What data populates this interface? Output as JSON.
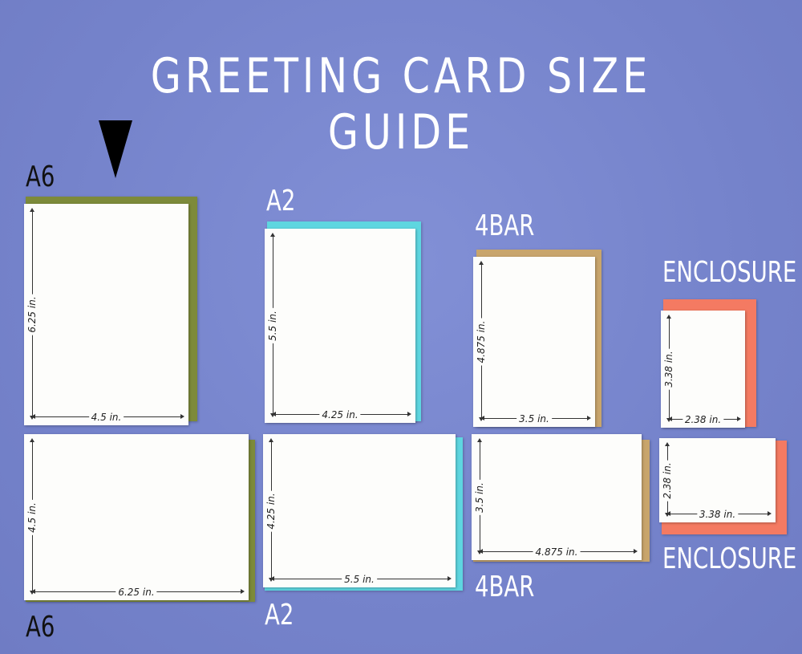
{
  "title": "GREETING CARD SIZE GUIDE",
  "colors": {
    "background": "#7a87cd",
    "a6_envelope": "#7d8a3a",
    "a2_envelope": "#5ed6e0",
    "4bar_envelope": "#c8a56c",
    "enclosure_envelope": "#f47a62",
    "card": "#fdfdfb"
  },
  "arrow_icon": "down-pointing-triangle",
  "labels": {
    "a6_top": "A6",
    "a2_top": "A2",
    "4bar_top": "4BAR",
    "enclosure_top": "ENCLOSURE",
    "a6_bottom": "A6",
    "a2_bottom": "A2",
    "4bar_bottom": "4BAR",
    "enclosure_bottom": "ENCLOSURE"
  },
  "cards": {
    "a6_portrait": {
      "height": "6.25 in.",
      "width": "4.5 in."
    },
    "a6_landscape": {
      "height": "4.5 in.",
      "width": "6.25 in."
    },
    "a2_portrait": {
      "height": "5.5 in.",
      "width": "4.25 in."
    },
    "a2_landscape": {
      "height": "4.25 in.",
      "width": "5.5 in."
    },
    "4bar_portrait": {
      "height": "4.875 in.",
      "width": "3.5 in."
    },
    "4bar_landscape": {
      "height": "3.5 in.",
      "width": "4.875 in."
    },
    "enclosure_portrait": {
      "height": "3.38 in.",
      "width": "2.38 in."
    },
    "enclosure_landscape": {
      "height": "2.38 in.",
      "width": "3.38 in."
    }
  }
}
